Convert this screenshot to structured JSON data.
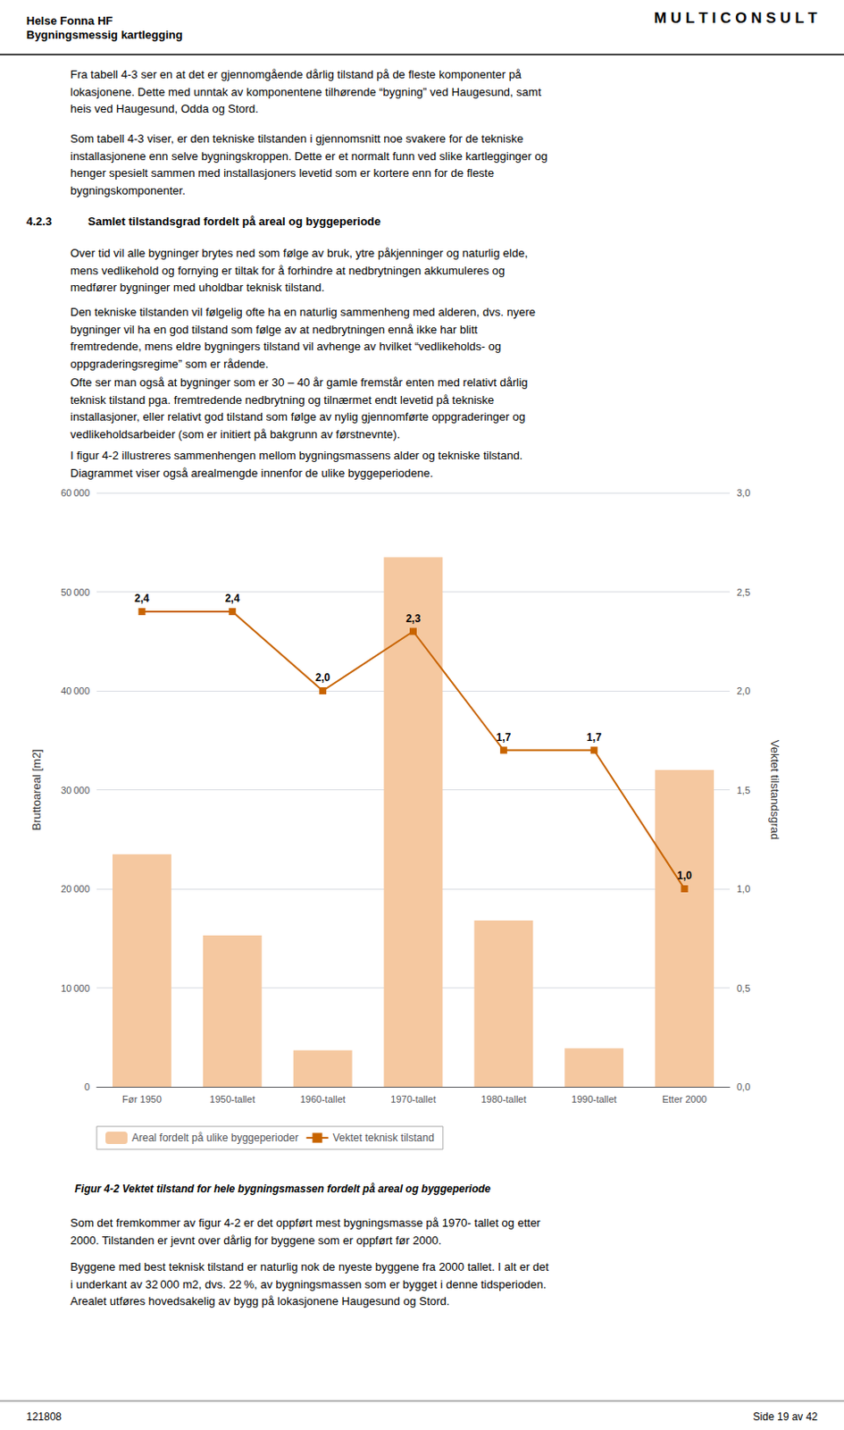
{
  "chart_data": {
    "type": "bar",
    "title": "Figur 4-2 Vektet tilstand for hele bygningsmassen fordelt på areal og byggeperiode",
    "annotations": [
      "Helse Fonna HF",
      "Bygningsmessig kartlegging",
      "M U L T I C O N S U L T",
      "Fra tabell 4-3 ser en at det er gjennomgående dårlig tilstand på de fleste komponenter på\nlokasjonene. Dette med unntak av komponentene tilhørende “bygning” ved Haugesund, samt\nheis ved Haugesund, Odda og Stord.",
      "Som tabell 4-3 viser, er den tekniske tilstanden i gjennomsnitt noe svakere for de tekniske\ninstallasjonene enn selve bygningskroppen. Dette er et normalt funn ved slike kartlegginger og\nhenger spesielt sammen med installasjoners levetid som er kortere enn for de fleste\nbygningskomponenter.",
      "4.2.3",
      "Samlet tilstandsgrad fordelt på areal og byggeperiode",
      "Over tid vil alle bygninger brytes ned som følge av bruk, ytre påkjenninger og naturlig elde,\nmens vedlikehold og fornying er tiltak for å forhindre at nedbrytningen akkumuleres og\nmedfører bygninger med uholdbar teknisk tilstand.",
      "Den tekniske tilstanden vil følgelig ofte ha en naturlig sammenheng med alderen, dvs. nyere\nbygninger vil ha en god tilstand som følge av at nedbrytningen ennå ikke har blitt\nfremtredende, mens eldre bygningers tilstand vil avhenge av hvilket “vedlikeholds- og\noppgraderingsregime” som er rådende.",
      "Ofte ser man også at bygninger som er 30 – 40 år gamle fremstår enten med relativt dårlig\nteknisk tilstand pga. fremtredende nedbrytning og tilnærmet endt levetid på tekniske\ninstallasjoner, eller relativt god tilstand som følge av nylig gjennomførte oppgraderinger og\nvedlikeholdsarbeider (som er initiert på bakgrunn av førstnevnte).",
      "I figur 4-2 illustreres sammenhengen mellom bygningsmassens alder og tekniske tilstand.\nDiagrammet viser også arealmengde innenfor de ulike byggeperiodene.",
      "Som det fremkommer av figur 4-2 er det oppført mest bygningsmasse på 1970- tallet og etter\n2000. Tilstanden er jevnt over dårlig for byggene som er oppført før 2000.",
      "Byggene med best teknisk tilstand er naturlig nok de nyeste byggene fra 2000 tallet. I alt er det\ni underkant av 32 000 m2, dvs. 22 %, av bygningsmassen som er bygget i denne tidsperioden.\nArealet utføres hovedsakelig av bygg på lokasjonene Haugesund og Stord.",
      "121808",
      "Side 19 av 42"
    ],
    "categories": [
      "Før 1950",
      "1950-tallet",
      "1960-tallet",
      "1970-tallet",
      "1980-tallet",
      "1990-tallet",
      "Etter 2000"
    ],
    "series": [
      {
        "name": "Areal fordelt på ulike byggeperioder",
        "type": "bar",
        "color": "#f5c8a0",
        "values": [
          23500,
          15300,
          3700,
          53500,
          16800,
          3900,
          32000
        ]
      },
      {
        "name": "Vektet teknisk tilstand",
        "type": "line",
        "axis": "y2",
        "color": "#c86400",
        "marker": "square",
        "values": [
          2.4,
          2.4,
          2.0,
          2.3,
          1.7,
          1.7,
          1.0
        ],
        "data_labels": true,
        "value_labels": [
          "2,4",
          "2,4",
          "2,0",
          "2,3",
          "1,7",
          "1,7",
          "1,0"
        ]
      }
    ],
    "ylabel": "Bruttoareal [m2]",
    "y2label": "Vektet tilstandsgrad",
    "ylim": [
      0,
      60000
    ],
    "yticks": [
      0,
      {
        "value": 10000,
        "label": "10 000"
      },
      {
        "value": 20000,
        "label": "20 000"
      },
      {
        "value": 30000,
        "label": "30 000"
      },
      {
        "value": 40000,
        "label": "40 000"
      },
      {
        "value": 50000,
        "label": "50 000"
      },
      {
        "value": 60000,
        "label": "60 000"
      }
    ],
    "y2lim": [
      0.0,
      3.0
    ],
    "y2ticks": [
      {
        "value": 0.0,
        "label": "0,0"
      },
      {
        "value": 0.5,
        "label": "0,5"
      },
      {
        "value": 1.0,
        "label": "1,0"
      },
      {
        "value": 1.5,
        "label": "1,5"
      },
      {
        "value": 2.0,
        "label": "2,0"
      },
      {
        "value": 2.5,
        "label": "2,5"
      },
      {
        "value": 3.0,
        "label": "3,0"
      }
    ],
    "grid": true,
    "legend": "bottom"
  }
}
